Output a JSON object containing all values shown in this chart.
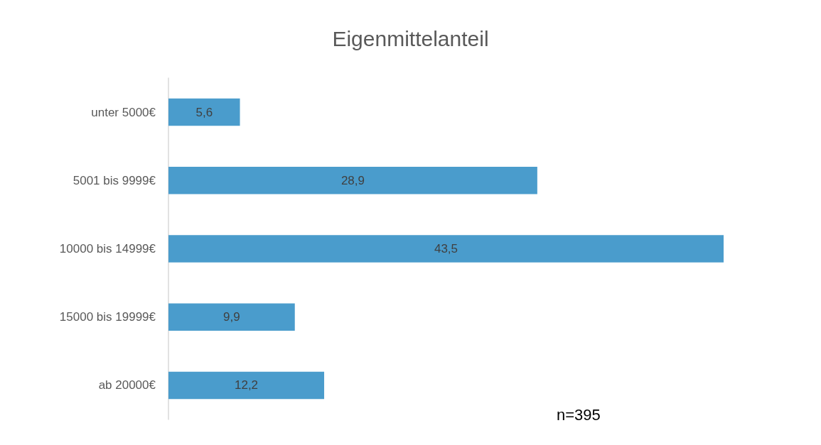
{
  "chart_data": {
    "type": "bar",
    "orientation": "horizontal",
    "title": "Eigenmittelanteil",
    "categories": [
      "unter 5000€",
      "5001 bis 9999€",
      "10000 bis 14999€",
      "15000 bis 19999€",
      "ab 20000€"
    ],
    "values": [
      5.6,
      28.9,
      43.5,
      9.9,
      12.2
    ],
    "value_labels": [
      "5,6",
      "28,9",
      "43,5",
      "9,9",
      "12,2"
    ],
    "color": "#4a9ccc",
    "annotations": [
      "n=395"
    ]
  }
}
